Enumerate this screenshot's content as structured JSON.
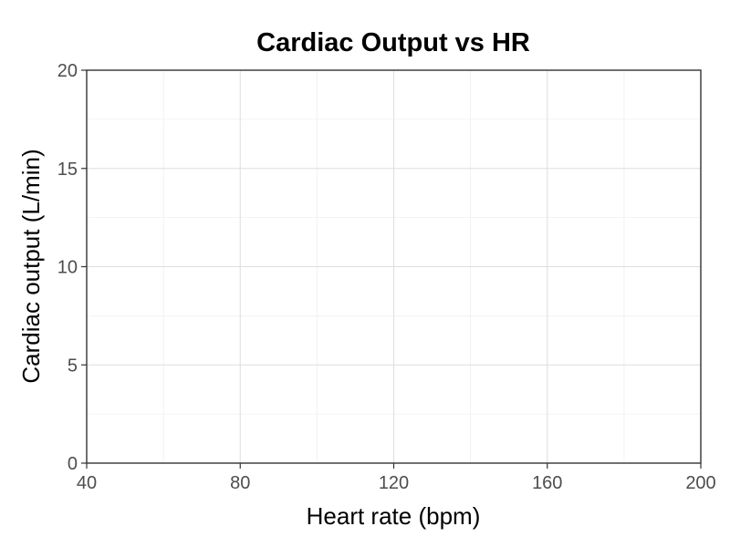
{
  "chart_data": {
    "type": "line",
    "title": "Cardiac Output vs HR",
    "xlabel": "Heart rate (bpm)",
    "ylabel": "Cardiac output (L/min)",
    "xlim": [
      40,
      200
    ],
    "ylim": [
      0,
      20
    ],
    "x_ticks": [
      40,
      80,
      120,
      160,
      200
    ],
    "x_minor_ticks": [
      60,
      100,
      140,
      180
    ],
    "y_ticks": [
      0,
      5,
      10,
      15,
      20
    ],
    "y_minor_ticks": [
      2.5,
      7.5,
      12.5,
      17.5
    ],
    "series": [],
    "grid": true,
    "colors": {
      "grid_major": "#dedede",
      "grid_minor": "#efefef",
      "axis": "#333333",
      "tick_label": "#4d4d4d",
      "text": "#000000"
    }
  }
}
